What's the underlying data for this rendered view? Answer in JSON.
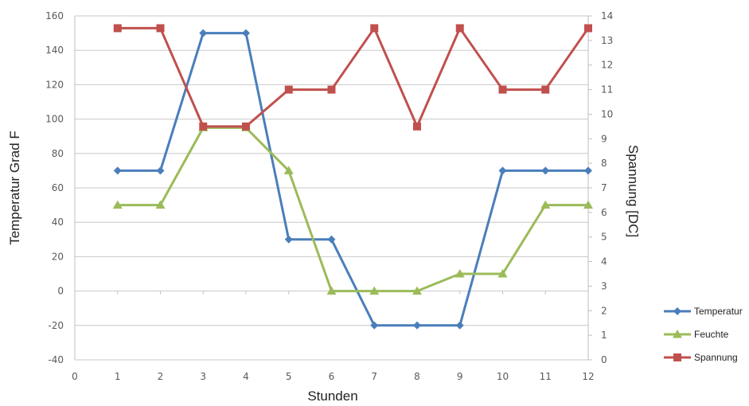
{
  "chart_data": {
    "type": "line",
    "title": "",
    "xlabel": "Stunden",
    "ylabel": "Temperatur Grad F",
    "y2label": "Spannung [DC]",
    "xlim": [
      0,
      12
    ],
    "ylim": [
      -40,
      160
    ],
    "y2lim": [
      0,
      14
    ],
    "x_ticks": [
      "0",
      "1",
      "2",
      "3",
      "4",
      "5",
      "6",
      "7",
      "8",
      "9",
      "10",
      "11",
      "12"
    ],
    "y_ticks": [
      "-40",
      "-20",
      "0",
      "20",
      "40",
      "60",
      "80",
      "100",
      "120",
      "140",
      "160"
    ],
    "y2_ticks": [
      "0",
      "1",
      "2",
      "3",
      "4",
      "5",
      "6",
      "7",
      "8",
      "9",
      "10",
      "11",
      "12",
      "13",
      "14"
    ],
    "grid": "horizontal",
    "legend_position": "right",
    "x": [
      1,
      2,
      3,
      4,
      5,
      6,
      7,
      8,
      9,
      10,
      11,
      12
    ],
    "series": [
      {
        "name": "Temperatur",
        "axis": "left",
        "marker": "diamond",
        "color": "#4a7ebb",
        "values": [
          70,
          70,
          150,
          150,
          30,
          30,
          -20,
          -20,
          -20,
          70,
          70,
          70
        ]
      },
      {
        "name": "Feuchte",
        "axis": "left",
        "marker": "triangle",
        "color": "#9bbb59",
        "values": [
          50,
          50,
          95,
          95,
          70,
          0,
          0,
          0,
          10,
          10,
          50,
          50
        ]
      },
      {
        "name": "Spannung",
        "axis": "right",
        "marker": "square",
        "color": "#c0504d",
        "values": [
          13.5,
          13.5,
          9.5,
          9.5,
          11,
          11,
          13.5,
          9.5,
          13.5,
          11,
          11,
          13.5
        ]
      }
    ]
  }
}
